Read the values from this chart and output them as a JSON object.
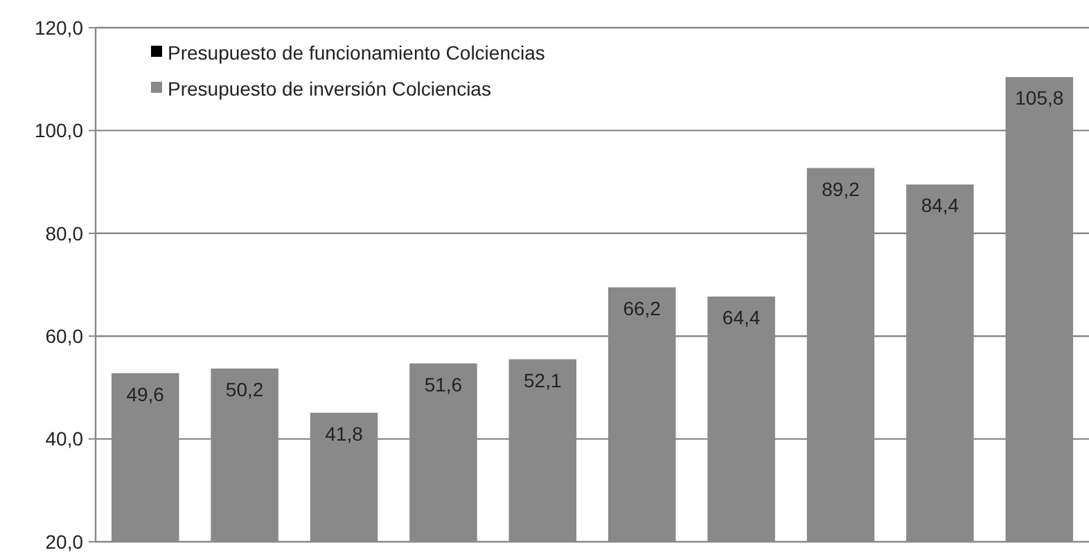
{
  "chart_data": {
    "type": "bar",
    "categories": [
      null,
      null,
      null,
      null,
      null,
      null,
      null,
      null,
      null,
      null
    ],
    "series": [
      {
        "name": "Presupuesto de funcionamiento Colciencias",
        "color": "#000000",
        "values": [
          null,
          null,
          null,
          null,
          null,
          null,
          null,
          null,
          null,
          null
        ]
      },
      {
        "name": "Presupuesto de inversión Colciencias",
        "color": "#898989",
        "values": [
          49.6,
          50.2,
          41.8,
          51.6,
          52.1,
          66.2,
          64.4,
          89.2,
          84.4,
          105.8
        ],
        "base": [
          3.2,
          3.5,
          3.3,
          3.1,
          3.4,
          3.3,
          3.3,
          3.5,
          5.1,
          4.6
        ],
        "value_labels": [
          "49,6",
          "50,2",
          "41,8",
          "51,6",
          "52,1",
          "66,2",
          "64,4",
          "89,2",
          "84,4",
          "105,8"
        ]
      }
    ],
    "ylim": [
      20,
      120
    ],
    "yticks": [
      {
        "value": 20,
        "label": "20,0"
      },
      {
        "value": 40,
        "label": "40,0"
      },
      {
        "value": 60,
        "label": "60,0"
      },
      {
        "value": 80,
        "label": "80,0"
      },
      {
        "value": 100,
        "label": "100,0"
      },
      {
        "value": 120,
        "label": "120,0"
      }
    ],
    "grid": "y",
    "legend": "top left"
  }
}
